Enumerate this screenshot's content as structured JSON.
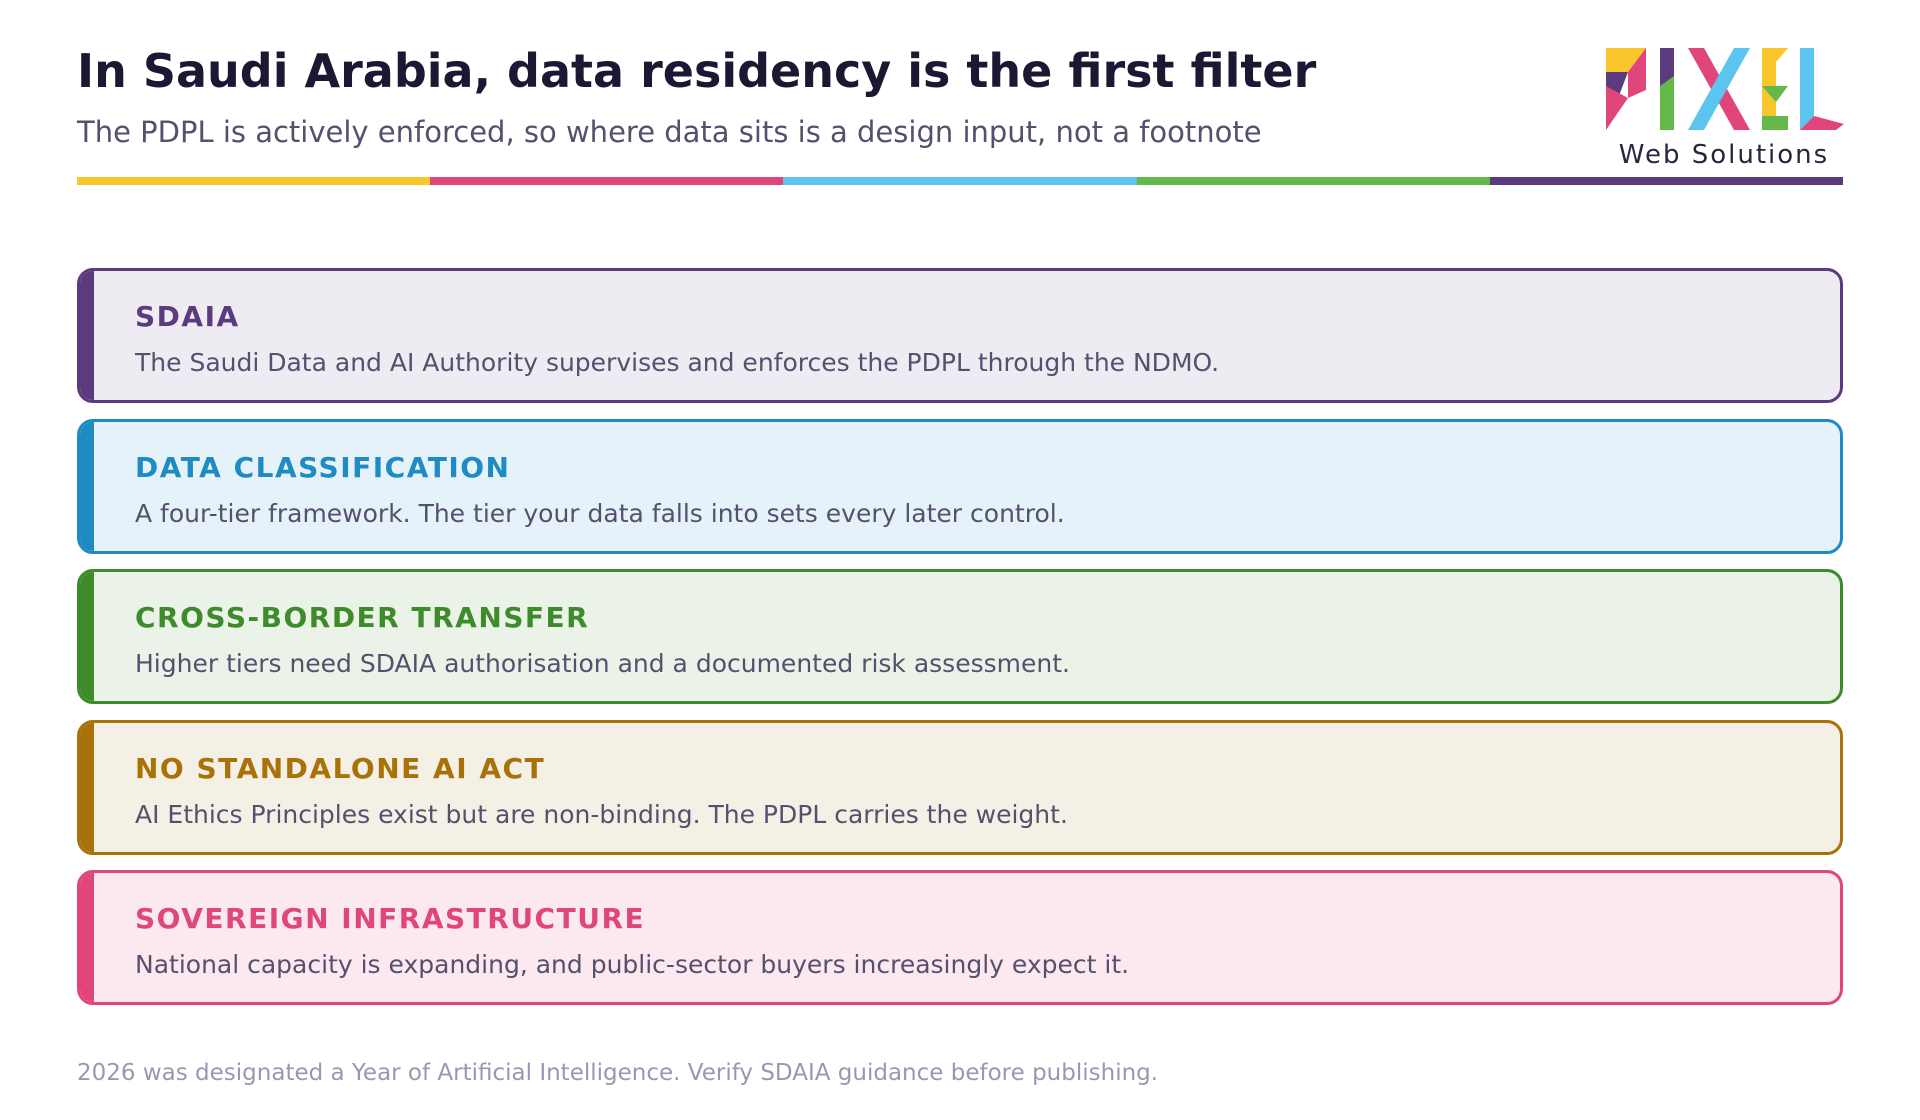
{
  "header": {
    "title": "In Saudi Arabia, data residency is the first filter",
    "subtitle": "The PDPL is actively enforced, so where data sits is a design input, not a footnote"
  },
  "logo": {
    "tagline": "Web Solutions"
  },
  "cards": [
    {
      "heading": "SDAIA",
      "text": "The Saudi Data and AI Authority supervises and enforces the PDPL through the NDMO."
    },
    {
      "heading": "DATA CLASSIFICATION",
      "text": "A four-tier framework. The tier your data falls into sets every later control."
    },
    {
      "heading": "CROSS-BORDER TRANSFER",
      "text": "Higher tiers need SDAIA authorisation and a documented risk assessment."
    },
    {
      "heading": "NO STANDALONE AI ACT",
      "text": "AI Ethics Principles exist but are non-binding. The PDPL carries the weight."
    },
    {
      "heading": "SOVEREIGN INFRASTRUCTURE",
      "text": "National capacity is expanding, and public-sector buyers increasingly expect it."
    }
  ],
  "footer": {
    "note": "2026 was designated a Year of Artificial Intelligence. Verify SDAIA guidance before publishing."
  }
}
